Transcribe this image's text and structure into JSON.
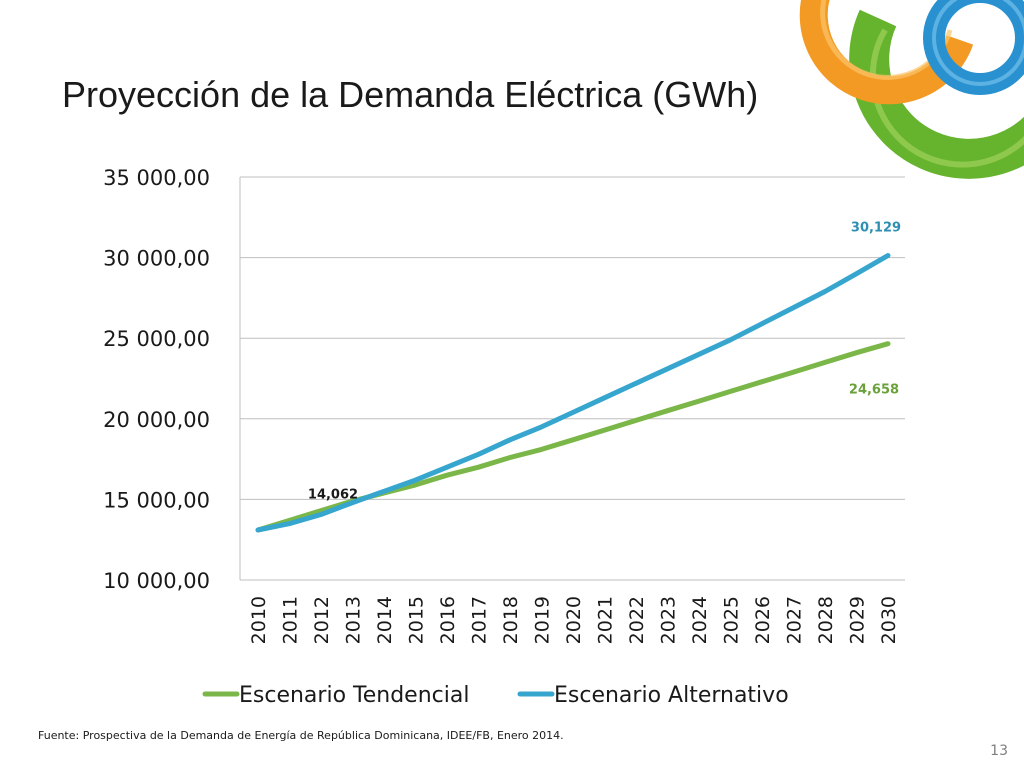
{
  "slide": {
    "title": "Proyección de la Demanda Eléctrica (GWh)",
    "footer": "Fuente:  Prospectiva de la Demanda de Energía de República Dominicana, IDEE/FB, Enero 2014.",
    "page_number": "13"
  },
  "colors": {
    "tendencial": "#7ab648",
    "alternativo": "#37a6cf",
    "grid": "#bfbfbf",
    "axis_text": "#1a1a1a"
  },
  "chart_data": {
    "type": "line",
    "title": "",
    "xlabel": "",
    "ylabel": "",
    "ylim": [
      10000,
      35000
    ],
    "y_ticks": [
      10000,
      15000,
      20000,
      25000,
      30000,
      35000
    ],
    "y_tick_labels": [
      "10 000,00",
      "15 000,00",
      "20 000,00",
      "25 000,00",
      "30 000,00",
      "35 000,00"
    ],
    "grid": true,
    "legend_position": "bottom",
    "x": [
      "2010",
      "2011",
      "2012",
      "2013",
      "2014",
      "2015",
      "2016",
      "2017",
      "2018",
      "2019",
      "2020",
      "2021",
      "2022",
      "2023",
      "2024",
      "2025",
      "2026",
      "2027",
      "2028",
      "2029",
      "2030"
    ],
    "series": [
      {
        "name": "Escenario Tendencial",
        "color": "#7ab648",
        "values": [
          13100,
          13700,
          14300,
          14900,
          15400,
          15900,
          16500,
          17000,
          17600,
          18100,
          18700,
          19300,
          19900,
          20500,
          21100,
          21700,
          22300,
          22900,
          23500,
          24100,
          24658
        ]
      },
      {
        "name": "Escenario Alternativo",
        "color": "#37a6cf",
        "values": [
          13100,
          13500,
          14062,
          14800,
          15500,
          16200,
          17000,
          17800,
          18700,
          19500,
          20400,
          21300,
          22200,
          23100,
          24000,
          24900,
          25900,
          26900,
          27900,
          29000,
          30129
        ]
      }
    ],
    "data_labels": [
      {
        "series": 1,
        "index": 2,
        "text": "14,062",
        "color": "#1a1a1a"
      },
      {
        "series": 1,
        "index": 20,
        "text": "30,129",
        "color": "#2e8fb3"
      },
      {
        "series": 0,
        "index": 20,
        "text": "24,658",
        "color": "#6aa13a"
      }
    ]
  }
}
